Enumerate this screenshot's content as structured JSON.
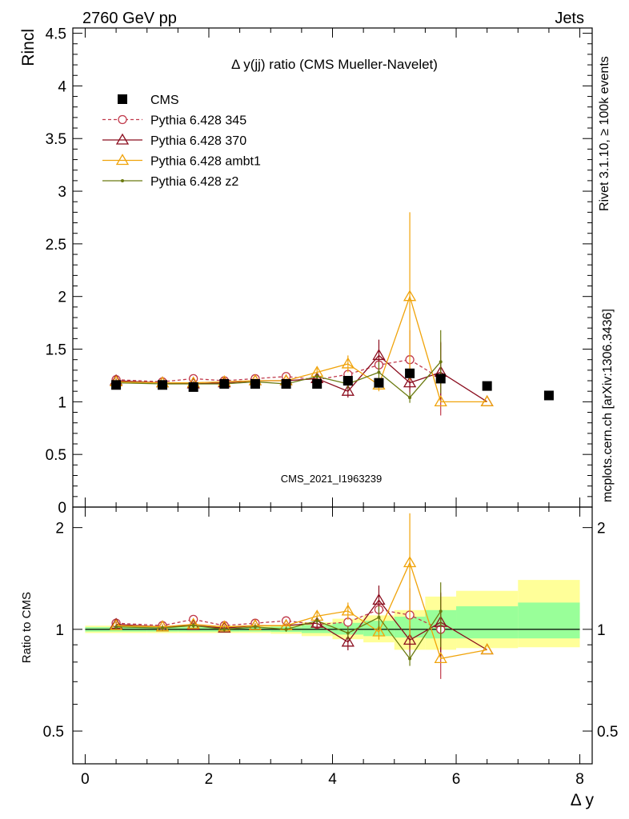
{
  "header": {
    "left": "2760 GeV pp",
    "right": "Jets"
  },
  "side_labels": {
    "rivet": "Rivet 3.1.10, ≥ 100k events",
    "mcplots": "mcplots.cern.ch [arXiv:1306.3436]"
  },
  "chart_data": {
    "type": "scatter",
    "title": "Δ y(jj) ratio (CMS Mueller-Navelet)",
    "watermark": "CMS_2021_I1963239",
    "ylabel": "Rincl",
    "ylabel_ratio": "Ratio to CMS",
    "xlabel": "Δ y",
    "xlim": [
      -0.2,
      8.2
    ],
    "ylim": [
      0,
      4.55
    ],
    "ratio_ylim": [
      0.4,
      2.3
    ],
    "ratio_log_scale": true,
    "x_ticks": [
      0,
      2,
      4,
      6,
      8
    ],
    "y_ticks": [
      0,
      0.5,
      1,
      1.5,
      2,
      2.5,
      3,
      3.5,
      4,
      4.5
    ],
    "ratio_y_ticks": [
      0.5,
      1,
      2
    ],
    "legend_position": "top-left",
    "colors": {
      "CMS": "#000000",
      "p345": "#c0394b",
      "p370": "#8b0d1e",
      "ambt1": "#f0a30a",
      "z2": "#6b7a10",
      "band_inner": "#99ff99",
      "band_outer": "#ffff99"
    },
    "data": {
      "name": "CMS",
      "x": [
        0.5,
        1.25,
        1.75,
        2.25,
        2.75,
        3.25,
        3.75,
        4.25,
        4.75,
        5.25,
        5.75,
        6.5,
        7.5
      ],
      "y": [
        1.16,
        1.16,
        1.14,
        1.17,
        1.17,
        1.17,
        1.17,
        1.2,
        1.18,
        1.27,
        1.22,
        1.15,
        1.06
      ]
    },
    "bands": {
      "edges": [
        0,
        1,
        1.5,
        2,
        2.5,
        3,
        3.5,
        4,
        4.5,
        5,
        5.5,
        6,
        7,
        8
      ],
      "inner_lo": [
        0.985,
        0.985,
        0.985,
        0.985,
        0.985,
        0.982,
        0.975,
        0.965,
        0.955,
        0.945,
        0.94,
        0.94,
        0.94
      ],
      "inner_hi": [
        1.015,
        1.015,
        1.015,
        1.015,
        1.015,
        1.018,
        1.03,
        1.045,
        1.06,
        1.09,
        1.14,
        1.17,
        1.2
      ],
      "outer_lo": [
        0.975,
        0.975,
        0.975,
        0.975,
        0.975,
        0.97,
        0.955,
        0.935,
        0.915,
        0.87,
        0.87,
        0.88,
        0.885
      ],
      "outer_hi": [
        1.025,
        1.025,
        1.025,
        1.025,
        1.025,
        1.03,
        1.05,
        1.075,
        1.1,
        1.14,
        1.25,
        1.3,
        1.4
      ]
    },
    "series": [
      {
        "name": "Pythia 6.428 345",
        "key": "p345",
        "marker": "circle",
        "dashed": true,
        "x": [
          0.5,
          1.25,
          1.75,
          2.25,
          2.75,
          3.25,
          3.75,
          4.25,
          4.75,
          5.25,
          5.75
        ],
        "y": [
          1.21,
          1.19,
          1.22,
          1.2,
          1.22,
          1.24,
          1.21,
          1.26,
          1.35,
          1.4,
          1.22
        ],
        "err": [
          0.02,
          0.02,
          0.02,
          0.02,
          0.02,
          0.02,
          0.03,
          0.05,
          0.08,
          0.28,
          0.35
        ]
      },
      {
        "name": "Pythia 6.428 370",
        "key": "p370",
        "marker": "triangle",
        "dashed": false,
        "x": [
          0.5,
          1.25,
          1.75,
          2.25,
          2.75,
          3.25,
          3.75,
          4.25,
          4.75,
          5.25,
          5.75,
          6.5
        ],
        "y": [
          1.2,
          1.18,
          1.17,
          1.18,
          1.2,
          1.2,
          1.22,
          1.1,
          1.44,
          1.18,
          1.28,
          1.0
        ],
        "err": [
          0.02,
          0.02,
          0.02,
          0.02,
          0.02,
          0.02,
          0.04,
          0.06,
          0.15,
          0.12,
          0.28,
          0.0
        ]
      },
      {
        "name": "Pythia 6.428 ambt1",
        "key": "ambt1",
        "marker": "triangle",
        "dashed": false,
        "x": [
          0.5,
          1.25,
          1.75,
          2.25,
          2.75,
          3.25,
          3.75,
          4.25,
          4.75,
          5.25,
          5.75,
          6.5
        ],
        "y": [
          1.19,
          1.18,
          1.18,
          1.19,
          1.2,
          1.2,
          1.28,
          1.36,
          1.16,
          2.0,
          1.0,
          1.0
        ],
        "err": [
          0.02,
          0.02,
          0.02,
          0.02,
          0.02,
          0.02,
          0.04,
          0.08,
          0.06,
          0.8,
          0.0,
          0.0
        ]
      },
      {
        "name": "Pythia 6.428 z2",
        "key": "z2",
        "marker": "dot",
        "dashed": false,
        "x": [
          0.5,
          1.25,
          1.75,
          2.25,
          2.75,
          3.25,
          3.75,
          4.25,
          4.75,
          5.25,
          5.75
        ],
        "y": [
          1.18,
          1.17,
          1.17,
          1.17,
          1.19,
          1.17,
          1.24,
          1.17,
          1.28,
          1.04,
          1.38
        ],
        "err": [
          0.02,
          0.02,
          0.02,
          0.02,
          0.02,
          0.02,
          0.03,
          0.05,
          0.1,
          0.05,
          0.3
        ]
      }
    ]
  }
}
